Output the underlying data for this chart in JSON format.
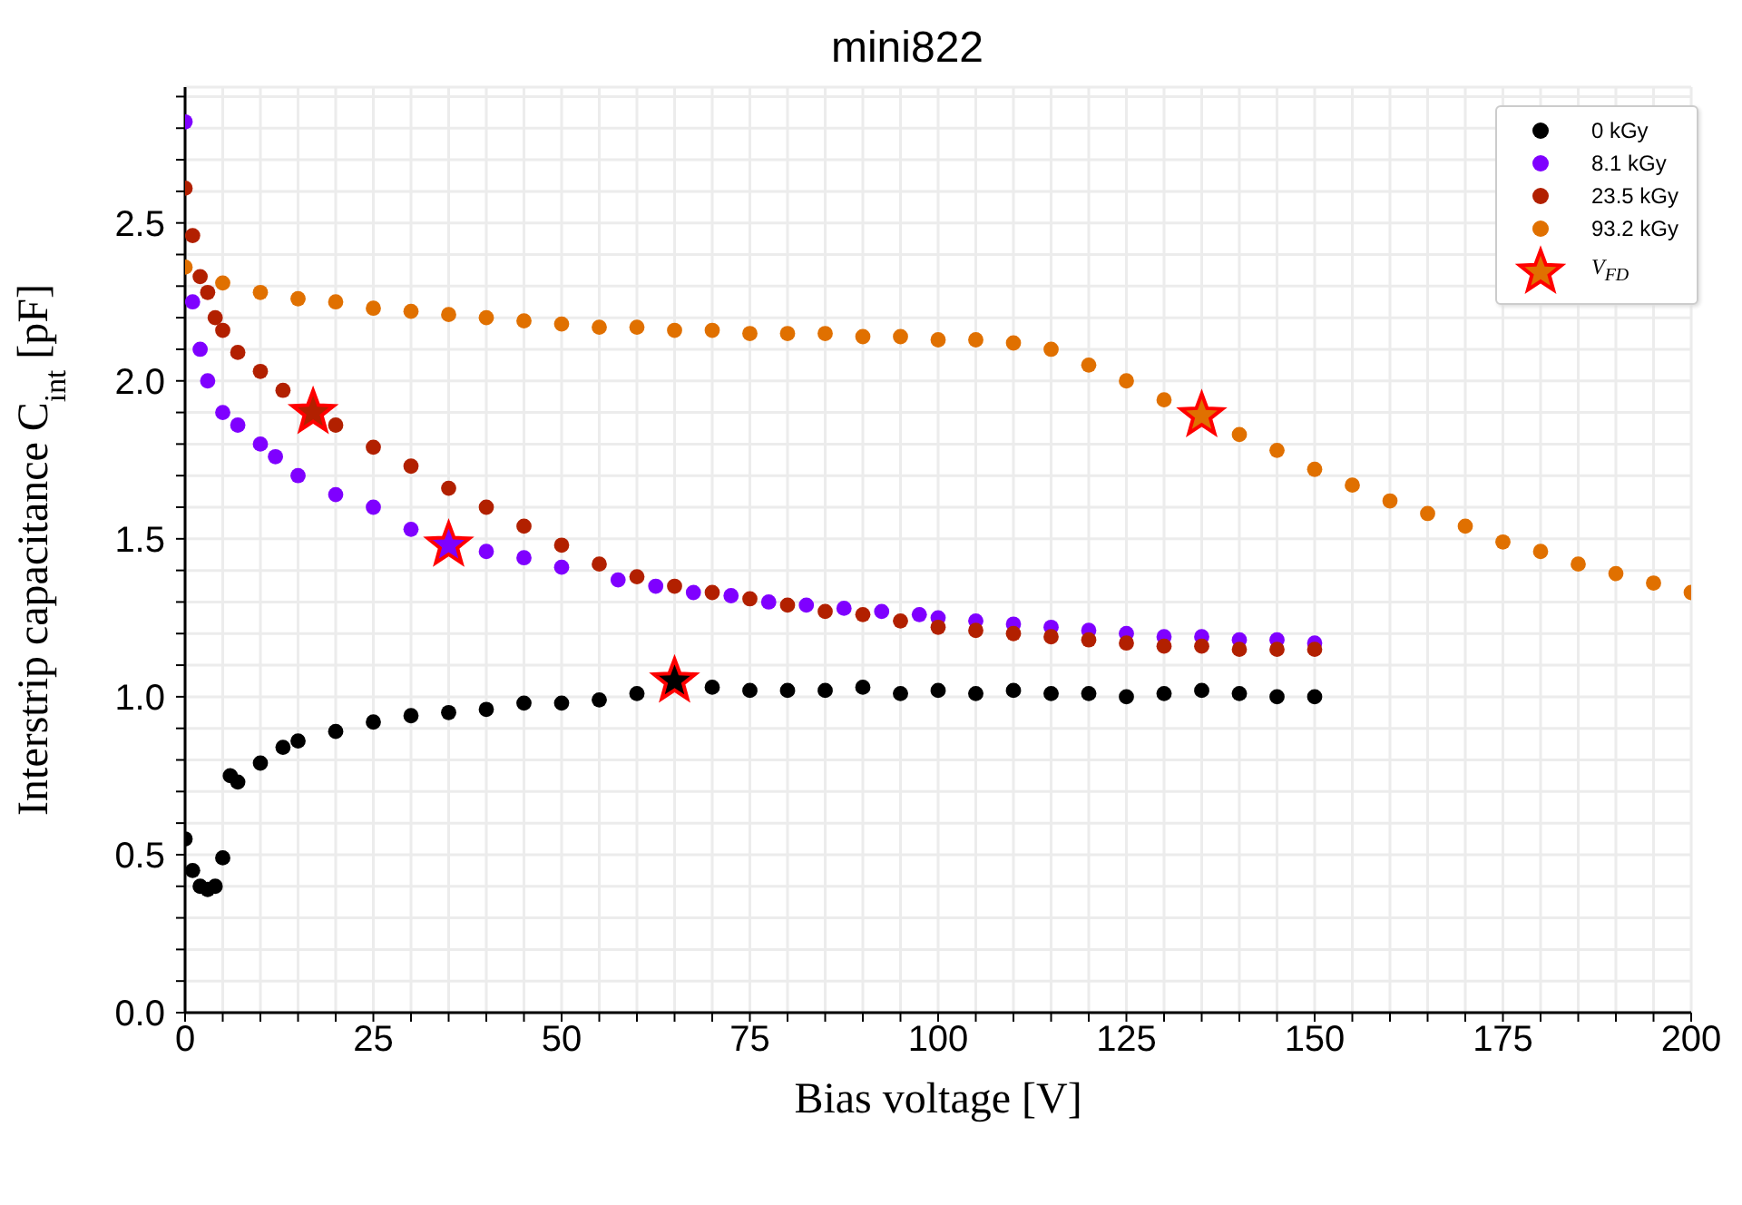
{
  "chart_data": {
    "type": "scatter",
    "title": "mini822",
    "xlabel": "Bias voltage [V]",
    "ylabel": "Interstrip capacitance C$_{int}$  [pF]",
    "marker": "circle",
    "grid": true,
    "legend": "top right",
    "xlim": [
      0,
      200
    ],
    "ylim": [
      0,
      2.93
    ],
    "xticks": [
      0,
      {
        "value": 5,
        "label": null
      },
      {
        "value": 10,
        "label": null
      },
      {
        "value": 15,
        "label": null
      },
      {
        "value": 20,
        "label": null
      },
      25,
      {
        "value": 30,
        "label": null
      },
      {
        "value": 35,
        "label": null
      },
      {
        "value": 40,
        "label": null
      },
      {
        "value": 45,
        "label": null
      },
      50,
      {
        "value": 55,
        "label": null
      },
      {
        "value": 60,
        "label": null
      },
      {
        "value": 65,
        "label": null
      },
      {
        "value": 70,
        "label": null
      },
      75,
      {
        "value": 80,
        "label": null
      },
      {
        "value": 85,
        "label": null
      },
      {
        "value": 90,
        "label": null
      },
      {
        "value": 95,
        "label": null
      },
      100,
      {
        "value": 105,
        "label": null
      },
      {
        "value": 110,
        "label": null
      },
      {
        "value": 115,
        "label": null
      },
      {
        "value": 120,
        "label": null
      },
      125,
      {
        "value": 130,
        "label": null
      },
      {
        "value": 135,
        "label": null
      },
      {
        "value": 140,
        "label": null
      },
      {
        "value": 145,
        "label": null
      },
      150,
      {
        "value": 155,
        "label": null
      },
      {
        "value": 160,
        "label": null
      },
      {
        "value": 165,
        "label": null
      },
      {
        "value": 170,
        "label": null
      },
      175,
      {
        "value": 180,
        "label": null
      },
      {
        "value": 185,
        "label": null
      },
      {
        "value": 190,
        "label": null
      },
      {
        "value": 195,
        "label": null
      },
      200
    ],
    "yticks": [
      {
        "value": 0,
        "label": "0.0"
      },
      {
        "value": 0.1,
        "label": null
      },
      {
        "value": 0.2,
        "label": null
      },
      {
        "value": 0.3,
        "label": null
      },
      {
        "value": 0.4,
        "label": null
      },
      0.5,
      {
        "value": 0.6,
        "label": null
      },
      {
        "value": 0.7,
        "label": null
      },
      {
        "value": 0.8,
        "label": null
      },
      {
        "value": 0.9,
        "label": null
      },
      {
        "value": 1,
        "label": "1.0"
      },
      {
        "value": 1.1,
        "label": null
      },
      {
        "value": 1.2,
        "label": null
      },
      {
        "value": 1.3,
        "label": null
      },
      {
        "value": 1.4,
        "label": null
      },
      1.5,
      {
        "value": 1.6,
        "label": null
      },
      {
        "value": 1.7,
        "label": null
      },
      {
        "value": 1.8,
        "label": null
      },
      {
        "value": 1.9,
        "label": null
      },
      {
        "value": 2,
        "label": "2.0"
      },
      {
        "value": 2.1,
        "label": null
      },
      {
        "value": 2.2,
        "label": null
      },
      {
        "value": 2.3,
        "label": null
      },
      {
        "value": 2.4,
        "label": null
      },
      2.5,
      {
        "value": 2.6,
        "label": null
      },
      {
        "value": 2.7,
        "label": null
      },
      {
        "value": 2.8,
        "label": null
      },
      {
        "value": 2.9,
        "label": null
      }
    ],
    "series": [
      {
        "name": "0 kGy",
        "color": "#000000",
        "x": [
          0,
          1,
          2,
          3,
          4,
          5,
          6,
          7,
          10,
          13,
          15,
          20,
          25,
          30,
          35,
          40,
          45,
          50,
          55,
          60,
          70,
          75,
          80,
          85,
          90,
          95,
          100,
          105,
          110,
          115,
          120,
          125,
          130,
          135,
          140,
          145,
          150
        ],
        "values": [
          0.55,
          0.45,
          0.4,
          0.39,
          0.4,
          0.49,
          0.75,
          0.73,
          0.79,
          0.84,
          0.86,
          0.89,
          0.92,
          0.94,
          0.95,
          0.96,
          0.98,
          0.98,
          0.99,
          1.01,
          1.03,
          1.02,
          1.02,
          1.02,
          1.03,
          1.01,
          1.02,
          1.01,
          1.02,
          1.01,
          1.01,
          1.0,
          1.01,
          1.02,
          1.01,
          1.0,
          1.0
        ]
      },
      {
        "name": "8.1 kGy",
        "color": "#7f00ff",
        "x": [
          0,
          1,
          2,
          3,
          5,
          7,
          10,
          12,
          15,
          20,
          25,
          30,
          40,
          45,
          50,
          57.5,
          62.5,
          67.5,
          72.5,
          77.5,
          82.5,
          87.5,
          92.5,
          97.5,
          100,
          105,
          110,
          115,
          120,
          125,
          130,
          135,
          140,
          145,
          150
        ],
        "values": [
          2.82,
          2.25,
          2.1,
          2.0,
          1.9,
          1.86,
          1.8,
          1.76,
          1.7,
          1.64,
          1.6,
          1.53,
          1.46,
          1.44,
          1.41,
          1.37,
          1.35,
          1.33,
          1.32,
          1.3,
          1.29,
          1.28,
          1.27,
          1.26,
          1.25,
          1.24,
          1.23,
          1.22,
          1.21,
          1.2,
          1.19,
          1.19,
          1.18,
          1.18,
          1.17
        ]
      },
      {
        "name": "23.5 kGy",
        "color": "#b22000",
        "x": [
          0,
          1,
          2,
          3,
          4,
          5,
          7,
          10,
          13,
          20,
          25,
          30,
          35,
          40,
          45,
          50,
          55,
          60,
          65,
          70,
          75,
          80,
          85,
          90,
          95,
          100,
          105,
          110,
          115,
          120,
          125,
          130,
          135,
          140,
          145,
          150
        ],
        "values": [
          2.61,
          2.46,
          2.33,
          2.28,
          2.2,
          2.16,
          2.09,
          2.03,
          1.97,
          1.86,
          1.79,
          1.73,
          1.66,
          1.6,
          1.54,
          1.48,
          1.42,
          1.38,
          1.35,
          1.33,
          1.31,
          1.29,
          1.27,
          1.26,
          1.24,
          1.22,
          1.21,
          1.2,
          1.19,
          1.18,
          1.17,
          1.16,
          1.16,
          1.15,
          1.15,
          1.15
        ]
      },
      {
        "name": "93.2 kGy",
        "color": "#e07000",
        "x": [
          0,
          5,
          10,
          15,
          20,
          25,
          30,
          35,
          40,
          45,
          50,
          55,
          60,
          65,
          70,
          75,
          80,
          85,
          90,
          95,
          100,
          105,
          110,
          115,
          120,
          125,
          130,
          140,
          145,
          150,
          155,
          160,
          165,
          170,
          175,
          180,
          185,
          190,
          195,
          200
        ],
        "values": [
          2.36,
          2.31,
          2.28,
          2.26,
          2.25,
          2.23,
          2.22,
          2.21,
          2.2,
          2.19,
          2.18,
          2.17,
          2.17,
          2.16,
          2.16,
          2.15,
          2.15,
          2.15,
          2.14,
          2.14,
          2.13,
          2.13,
          2.12,
          2.1,
          2.05,
          2.0,
          1.94,
          1.83,
          1.78,
          1.72,
          1.67,
          1.62,
          1.58,
          1.54,
          1.49,
          1.46,
          1.42,
          1.39,
          1.36,
          1.33
        ]
      },
      {
        "name": "V$_{FD}$",
        "marker": "star",
        "color": "#ff0000",
        "colors": [
          "#000000",
          "#7f00ff",
          "#b22000",
          "#e07000"
        ],
        "x": [
          65,
          35,
          17,
          135
        ],
        "values": [
          1.05,
          1.48,
          1.9,
          1.89
        ]
      }
    ]
  }
}
